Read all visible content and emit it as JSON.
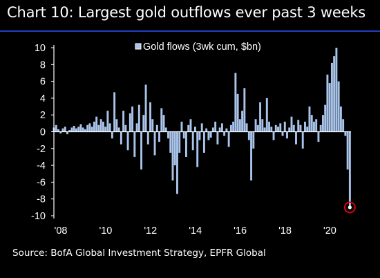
{
  "title": "Chart 10: Largest gold outflows ever past 3 weeks",
  "source": "Source: BofA Global Investment Strategy, EPFR Global",
  "colors": {
    "background": "#000000",
    "bars": "#a9c4ea",
    "axis": "#ffffff",
    "title_rule": "#1f3fbf",
    "highlight": "#e0000b"
  },
  "chart_data": {
    "type": "bar",
    "legend": {
      "label": "Gold flows (3wk cum, $bn)",
      "placement": "top-center"
    },
    "ylim": [
      -10,
      10
    ],
    "yticks": [
      10,
      8,
      6,
      4,
      2,
      0,
      -2,
      -4,
      -6,
      -8,
      -10
    ],
    "xlim": [
      2008,
      2021.25
    ],
    "xticks": [
      {
        "value": 2008,
        "label": "'08"
      },
      {
        "value": 2010,
        "label": "'10"
      },
      {
        "value": 2012,
        "label": "'12"
      },
      {
        "value": 2014,
        "label": "'14"
      },
      {
        "value": 2016,
        "label": "'16"
      },
      {
        "value": 2018,
        "label": "'18"
      },
      {
        "value": 2020,
        "label": "'20"
      }
    ],
    "x": [
      2008.0,
      2008.1,
      2008.2,
      2008.3,
      2008.4,
      2008.5,
      2008.6,
      2008.7,
      2008.8,
      2008.9,
      2009.0,
      2009.1,
      2009.2,
      2009.3,
      2009.4,
      2009.5,
      2009.6,
      2009.7,
      2009.8,
      2009.9,
      2010.0,
      2010.1,
      2010.2,
      2010.3,
      2010.4,
      2010.5,
      2010.6,
      2010.7,
      2010.8,
      2010.9,
      2011.0,
      2011.1,
      2011.2,
      2011.3,
      2011.4,
      2011.5,
      2011.6,
      2011.7,
      2011.8,
      2011.9,
      2012.0,
      2012.1,
      2012.2,
      2012.3,
      2012.4,
      2012.5,
      2012.6,
      2012.7,
      2012.8,
      2012.9,
      2013.0,
      2013.1,
      2013.2,
      2013.3,
      2013.4,
      2013.5,
      2013.6,
      2013.7,
      2013.8,
      2013.9,
      2014.0,
      2014.1,
      2014.2,
      2014.3,
      2014.4,
      2014.5,
      2014.6,
      2014.7,
      2014.8,
      2014.9,
      2015.0,
      2015.1,
      2015.2,
      2015.3,
      2015.4,
      2015.5,
      2015.6,
      2015.7,
      2015.8,
      2015.9,
      2016.0,
      2016.1,
      2016.2,
      2016.3,
      2016.4,
      2016.5,
      2016.6,
      2016.7,
      2016.8,
      2016.9,
      2017.0,
      2017.1,
      2017.2,
      2017.3,
      2017.4,
      2017.5,
      2017.6,
      2017.7,
      2017.8,
      2017.9,
      2018.0,
      2018.1,
      2018.2,
      2018.3,
      2018.4,
      2018.5,
      2018.6,
      2018.7,
      2018.8,
      2018.9,
      2019.0,
      2019.1,
      2019.2,
      2019.3,
      2019.4,
      2019.5,
      2019.6,
      2019.7,
      2019.8,
      2019.9,
      2020.0,
      2020.1,
      2020.2,
      2020.3,
      2020.4,
      2020.5,
      2020.6,
      2020.7,
      2020.8,
      2020.9,
      2021.0,
      2021.1,
      2021.2
    ],
    "values": [
      0.5,
      0.8,
      0.3,
      -0.2,
      0.4,
      0.6,
      -0.3,
      0.2,
      0.5,
      0.7,
      0.4,
      0.6,
      0.9,
      0.5,
      0.3,
      0.8,
      1.0,
      0.6,
      1.2,
      1.8,
      0.8,
      1.5,
      1.2,
      0.6,
      2.5,
      1.0,
      -0.8,
      4.7,
      1.5,
      0.5,
      -1.5,
      2.5,
      0.8,
      -2.2,
      2.2,
      3.0,
      -3.0,
      1.0,
      3.2,
      -4.5,
      2.0,
      5.6,
      -1.5,
      3.5,
      1.5,
      -2.8,
      0.8,
      -1.2,
      2.8,
      2.0,
      0.5,
      -0.8,
      -2.5,
      -5.8,
      -4.0,
      -7.4,
      -2.5,
      1.2,
      -0.8,
      -3.0,
      0.8,
      1.5,
      -2.2,
      0.6,
      -4.2,
      -1.0,
      1.0,
      -2.5,
      0.4,
      -1.0,
      -0.7,
      0.5,
      1.2,
      -1.5,
      0.5,
      1.0,
      -0.5,
      0.4,
      -1.8,
      0.8,
      1.2,
      7.0,
      4.5,
      1.5,
      2.5,
      5.2,
      1.0,
      -1.0,
      -5.8,
      -2.0,
      1.5,
      0.8,
      3.5,
      1.5,
      0.5,
      4.0,
      1.2,
      0.6,
      -1.0,
      0.8,
      0.6,
      1.0,
      -0.5,
      1.2,
      -0.8,
      0.5,
      1.8,
      0.8,
      -1.5,
      1.4,
      0.8,
      -2.0,
      1.2,
      0.6,
      3.0,
      2.0,
      1.2,
      1.5,
      -1.2,
      0.8,
      2.0,
      3.2,
      6.8,
      5.8,
      8.2,
      9.0,
      10.0,
      6.0,
      3.0,
      1.5,
      -0.5,
      -4.5,
      -9.0
    ],
    "annotation": {
      "label": "highlighted latest outflow",
      "x": 2021.2,
      "y": -9.0
    }
  }
}
